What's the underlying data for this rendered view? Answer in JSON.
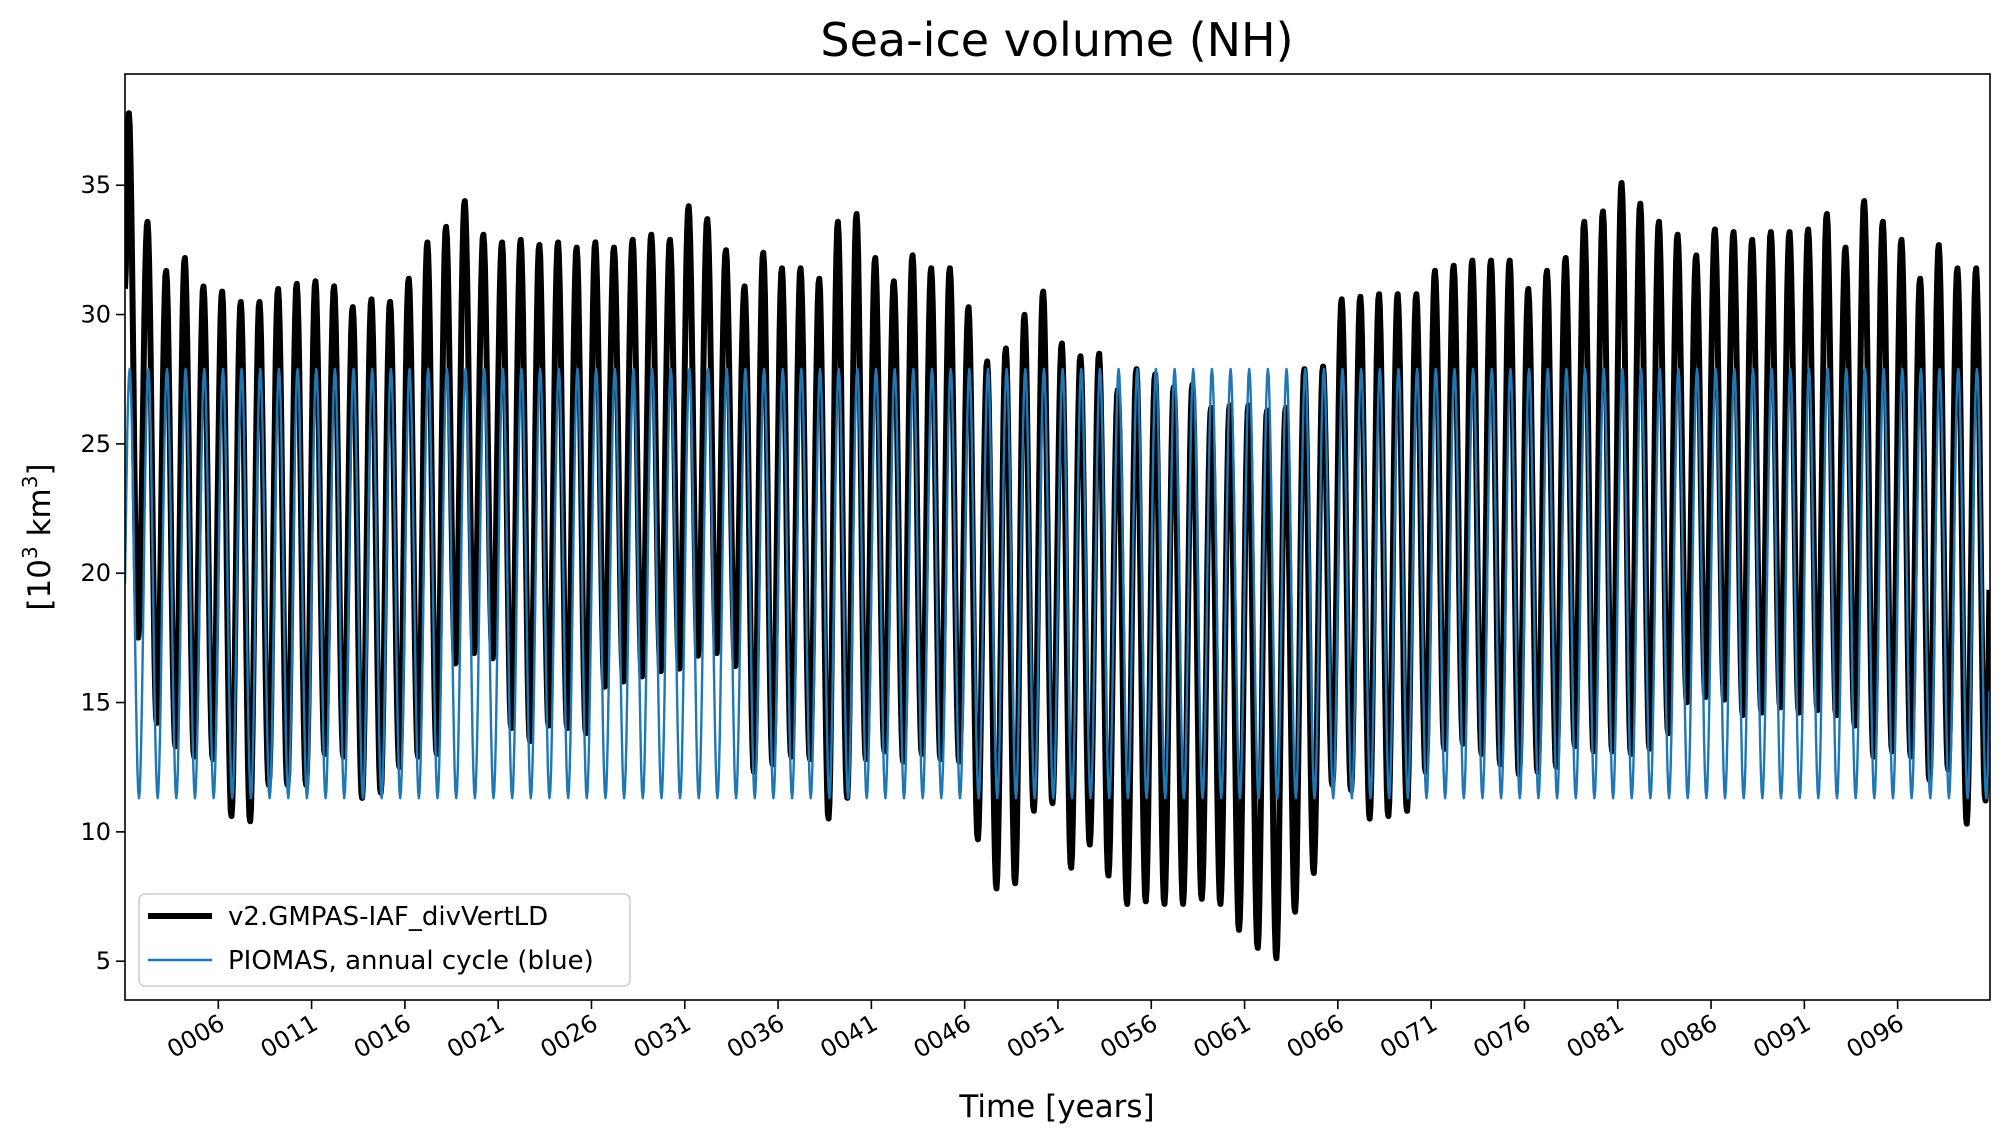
{
  "chart_data": {
    "type": "line",
    "title": "Sea-ice volume (NH)",
    "xlabel": "Time [years]",
    "ylabel": {
      "prefix": "[10",
      "sup1": "3",
      "mid": " km",
      "sup2": "3",
      "suffix": "]"
    },
    "xlim": [
      1.0,
      100.95
    ],
    "ylim": [
      3.5,
      39.3
    ],
    "x_ticks": [
      6,
      11,
      16,
      21,
      26,
      31,
      36,
      41,
      46,
      51,
      56,
      61,
      66,
      71,
      76,
      81,
      86,
      91,
      96
    ],
    "x_tick_labels": [
      "0006",
      "0011",
      "0016",
      "0021",
      "0026",
      "0031",
      "0036",
      "0041",
      "0046",
      "0051",
      "0056",
      "0061",
      "0066",
      "0071",
      "0076",
      "0081",
      "0086",
      "0091",
      "0096"
    ],
    "y_ticks": [
      5,
      10,
      15,
      20,
      25,
      30,
      35
    ],
    "y_tick_labels": [
      "5",
      "10",
      "15",
      "20",
      "25",
      "30",
      "35"
    ],
    "legend": {
      "location": "lower-left",
      "entries": [
        "v2.GMPAS-IAF_divVertLD",
        "PIOMAS, annual cycle (blue)"
      ]
    },
    "series": [
      {
        "name": "v2.GMPAS-IAF_divVertLD",
        "color": "#000000",
        "style": "thick",
        "annual_cycle": {
          "years": [
            1,
            2,
            3,
            4,
            5,
            6,
            7,
            8,
            9,
            10,
            11,
            12,
            13,
            14,
            15,
            16,
            17,
            18,
            19,
            20,
            21,
            22,
            23,
            24,
            25,
            26,
            27,
            28,
            29,
            30,
            31,
            32,
            33,
            34,
            35,
            36,
            37,
            38,
            39,
            40,
            41,
            42,
            43,
            44,
            45,
            46,
            47,
            48,
            49,
            50,
            51,
            52,
            53,
            54,
            55,
            56,
            57,
            58,
            59,
            60,
            61,
            62,
            63,
            64,
            65,
            66,
            67,
            68,
            69,
            70,
            71,
            72,
            73,
            74,
            75,
            76,
            77,
            78,
            79,
            80,
            81,
            82,
            83,
            84,
            85,
            86,
            87,
            88,
            89,
            90,
            91,
            92,
            93,
            94,
            95,
            96,
            97,
            98,
            99,
            100
          ],
          "max": [
            37.8,
            33.6,
            31.7,
            32.2,
            31.1,
            30.9,
            30.5,
            30.5,
            31.0,
            31.2,
            31.3,
            31.1,
            30.3,
            30.6,
            30.5,
            31.4,
            32.8,
            33.4,
            34.4,
            33.1,
            32.8,
            32.9,
            32.7,
            32.8,
            32.6,
            32.8,
            32.6,
            32.9,
            33.1,
            32.9,
            34.2,
            33.7,
            32.5,
            31.1,
            32.4,
            31.8,
            31.8,
            31.4,
            33.6,
            33.9,
            32.2,
            31.3,
            32.3,
            31.8,
            31.8,
            30.3,
            28.2,
            28.7,
            30.0,
            30.9,
            28.9,
            28.4,
            28.5,
            27.1,
            27.9,
            27.7,
            27.2,
            27.3,
            26.4,
            26.5,
            26.5,
            26.3,
            26.4,
            27.9,
            28.0,
            30.6,
            30.7,
            30.8,
            30.8,
            30.8,
            31.7,
            31.9,
            32.1,
            32.1,
            32.1,
            31.0,
            31.7,
            32.2,
            33.6,
            34.0,
            35.1,
            34.3,
            33.6,
            33.1,
            32.3,
            33.3,
            33.2,
            32.9,
            33.2,
            33.2,
            33.3,
            33.9,
            32.6,
            34.4,
            33.6,
            32.9,
            31.4,
            32.7,
            31.8,
            31.8
          ],
          "min": [
            17.5,
            14.2,
            13.3,
            12.9,
            12.8,
            10.6,
            10.4,
            11.8,
            11.8,
            11.8,
            13.0,
            12.9,
            11.3,
            11.5,
            12.5,
            12.9,
            13.0,
            16.5,
            16.9,
            16.7,
            14.0,
            13.5,
            14.1,
            14.0,
            13.8,
            15.6,
            15.8,
            16.0,
            16.2,
            16.3,
            16.8,
            16.9,
            16.4,
            12.3,
            12.6,
            12.9,
            12.8,
            10.5,
            11.3,
            12.8,
            13.1,
            12.7,
            13.0,
            12.8,
            12.7,
            9.7,
            7.8,
            8.0,
            10.8,
            11.1,
            8.6,
            9.5,
            8.3,
            7.2,
            7.3,
            7.2,
            7.2,
            7.4,
            7.2,
            6.2,
            5.5,
            5.1,
            6.9,
            8.4,
            11.8,
            11.6,
            10.5,
            10.6,
            10.8,
            12.3,
            13.2,
            13.4,
            13.0,
            12.6,
            12.2,
            12.3,
            12.5,
            13.3,
            13.1,
            13.1,
            13.0,
            13.2,
            13.8,
            15.0,
            15.2,
            15.1,
            14.5,
            14.6,
            14.8,
            14.6,
            14.7,
            14.5,
            14.1,
            12.9,
            13.1,
            12.9,
            12.0,
            12.4,
            10.3,
            11.2
          ]
        }
      },
      {
        "name": "PIOMAS, annual cycle (blue)",
        "color": "#1f77b4",
        "style": "thin",
        "annual_cycle": {
          "max": 27.9,
          "min": 11.3
        }
      }
    ]
  }
}
